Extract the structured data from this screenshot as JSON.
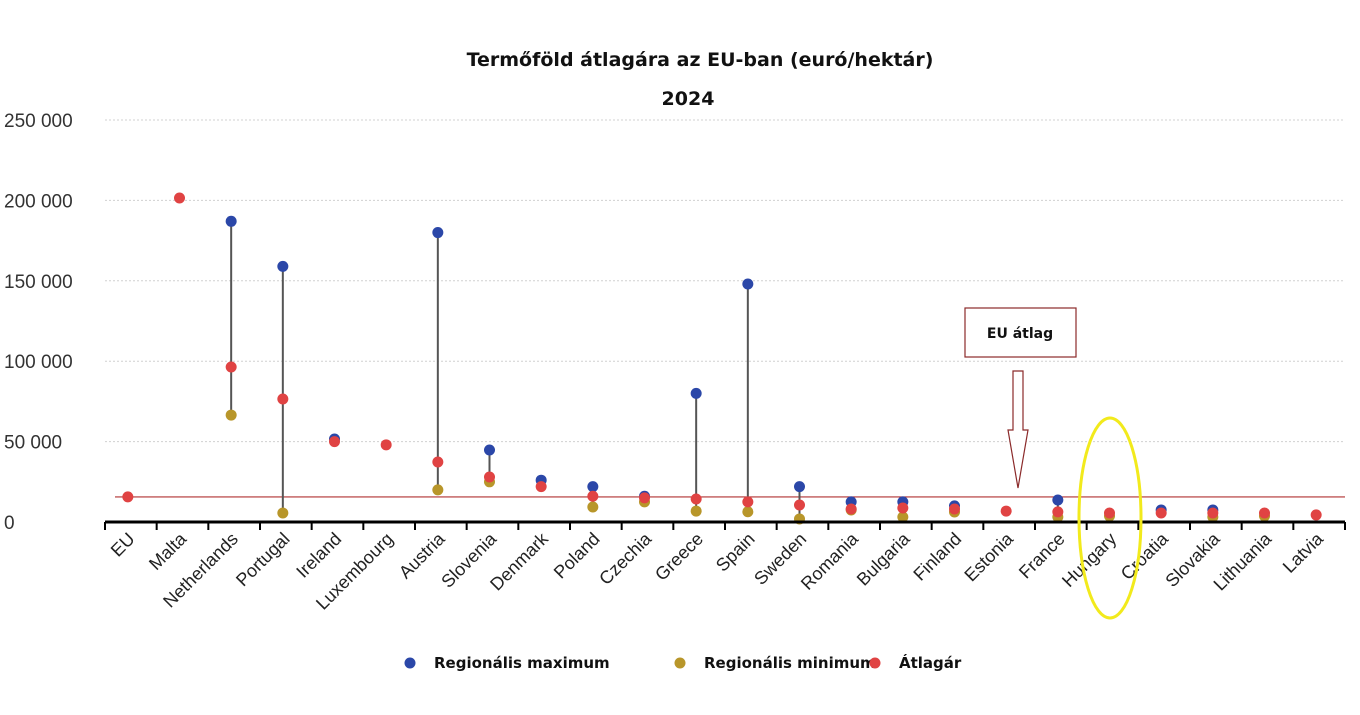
{
  "chart_data": {
    "type": "scatter",
    "title": "Termőföld átlagára az EU-ban (euró/hektár)",
    "subtitle": "2024",
    "xlabel": "",
    "ylabel": "",
    "ylim": [
      0,
      250000
    ],
    "yticks": [
      "0",
      "50 000",
      "100 000",
      "150 000",
      "200 000",
      "250 000"
    ],
    "ytick_values": [
      0,
      50000,
      100000,
      150000,
      200000,
      250000
    ],
    "grid": true,
    "legend_position": "bottom",
    "categories": [
      "EU",
      "Malta",
      "Netherlands",
      "Portugal",
      "Ireland",
      "Luxembourg",
      "Austria",
      "Slovenia",
      "Denmark",
      "Poland",
      "Czechia",
      "Greece",
      "Spain",
      "Sweden",
      "Romania",
      "Bulgaria",
      "Finland",
      "Estonia",
      "France",
      "Hungary",
      "Croatia",
      "Slovakia",
      "Lithuania",
      "Latvia"
    ],
    "series": [
      {
        "name": "Regionális maximum",
        "color": "#2b47a8",
        "values": [
          null,
          null,
          187000,
          159000,
          51600,
          null,
          180000,
          44800,
          26000,
          22000,
          16000,
          80000,
          148000,
          22000,
          12500,
          12500,
          10000,
          null,
          13700,
          null,
          7500,
          7500,
          null,
          null
        ]
      },
      {
        "name": "Regionális minimum",
        "color": "#b8962a",
        "values": [
          null,
          null,
          66500,
          5600,
          null,
          null,
          20000,
          25000,
          null,
          9300,
          12500,
          6800,
          6400,
          1900,
          7500,
          3100,
          6200,
          null,
          3100,
          3700,
          null,
          3100,
          3700,
          null
        ]
      },
      {
        "name": "Átlagár",
        "color": "#e04343",
        "values": [
          15600,
          201500,
          96400,
          76500,
          50000,
          48000,
          37300,
          28000,
          22000,
          16000,
          15000,
          14300,
          12500,
          10600,
          8100,
          8700,
          8100,
          6800,
          6300,
          5600,
          5600,
          5600,
          5600,
          4400
        ]
      }
    ],
    "reference_line": {
      "value": 15600,
      "color": "#b03030"
    },
    "annotation": {
      "text": "EU átlag",
      "target": "EU average line"
    },
    "highlight": {
      "category": "Hungary",
      "color": "#f2ea1c"
    }
  }
}
